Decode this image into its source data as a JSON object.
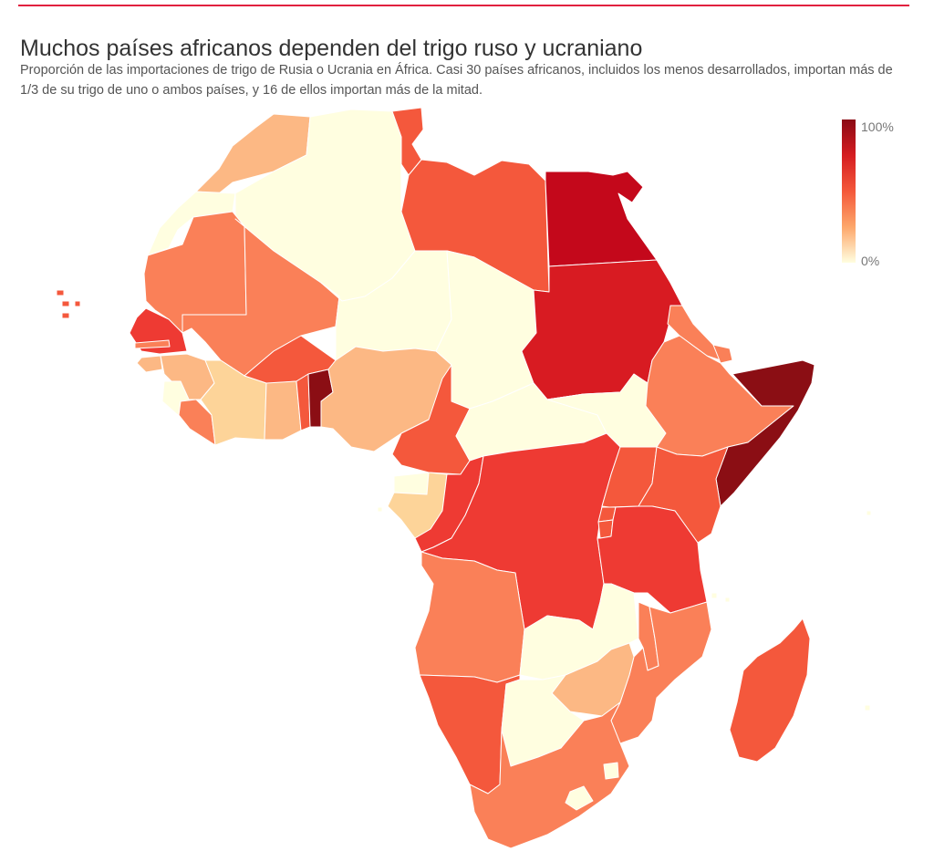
{
  "header": {
    "title": "Muchos países africanos dependen del trigo ruso y ucraniano",
    "subtitle": "Proporción de las importaciones de trigo de Rusia o Ucrania en África. Casi 30 países africanos, incluidos los menos desarrollados, importan más de 1/3 de su trigo de uno o ambos países, y 16 de ellos importan más de la mitad."
  },
  "legend": {
    "max_label": "100%",
    "min_label": "0%",
    "color_max": "#8b0a15",
    "color_min": "#fffee0"
  },
  "map": {
    "colors": {
      "very_high": "#8b0e14",
      "high": "#c4081b",
      "red": "#d81b22",
      "red_orange": "#ee3a33",
      "orange_red": "#f4583c",
      "orange": "#fa8058",
      "light_orange": "#fcb884",
      "pale": "#fdd499",
      "none": "#fffee0",
      "border": "#ffffff"
    },
    "countries": [
      {
        "name": "Morocco",
        "color": "light_orange"
      },
      {
        "name": "Western Sahara",
        "color": "none"
      },
      {
        "name": "Algeria",
        "color": "none"
      },
      {
        "name": "Tunisia",
        "color": "orange_red"
      },
      {
        "name": "Libya",
        "color": "orange_red"
      },
      {
        "name": "Egypt",
        "color": "high"
      },
      {
        "name": "Mauritania",
        "color": "orange"
      },
      {
        "name": "Mali",
        "color": "orange"
      },
      {
        "name": "Niger",
        "color": "none"
      },
      {
        "name": "Chad",
        "color": "none"
      },
      {
        "name": "Sudan",
        "color": "red"
      },
      {
        "name": "Senegal",
        "color": "red_orange"
      },
      {
        "name": "Gambia",
        "color": "orange"
      },
      {
        "name": "Guinea-Bissau",
        "color": "light_orange"
      },
      {
        "name": "Guinea",
        "color": "light_orange"
      },
      {
        "name": "Sierra Leone",
        "color": "none"
      },
      {
        "name": "Liberia",
        "color": "orange"
      },
      {
        "name": "Ivory Coast",
        "color": "pale"
      },
      {
        "name": "Burkina Faso",
        "color": "orange_red"
      },
      {
        "name": "Ghana",
        "color": "light_orange"
      },
      {
        "name": "Togo",
        "color": "orange_red"
      },
      {
        "name": "Benin",
        "color": "very_high"
      },
      {
        "name": "Nigeria",
        "color": "light_orange"
      },
      {
        "name": "Cameroon",
        "color": "orange_red"
      },
      {
        "name": "Central African Republic",
        "color": "none"
      },
      {
        "name": "South Sudan",
        "color": "none"
      },
      {
        "name": "Eritrea",
        "color": "orange"
      },
      {
        "name": "Djibouti",
        "color": "orange"
      },
      {
        "name": "Ethiopia",
        "color": "orange"
      },
      {
        "name": "Somalia",
        "color": "very_high"
      },
      {
        "name": "Equatorial Guinea",
        "color": "none"
      },
      {
        "name": "Gabon",
        "color": "pale"
      },
      {
        "name": "Republic of the Congo",
        "color": "red_orange"
      },
      {
        "name": "DR Congo",
        "color": "red_orange"
      },
      {
        "name": "Uganda",
        "color": "orange_red"
      },
      {
        "name": "Kenya",
        "color": "orange_red"
      },
      {
        "name": "Rwanda",
        "color": "orange_red"
      },
      {
        "name": "Burundi",
        "color": "orange_red"
      },
      {
        "name": "Tanzania",
        "color": "red_orange"
      },
      {
        "name": "Angola",
        "color": "orange"
      },
      {
        "name": "Zambia",
        "color": "none"
      },
      {
        "name": "Malawi",
        "color": "orange"
      },
      {
        "name": "Mozambique",
        "color": "orange"
      },
      {
        "name": "Zimbabwe",
        "color": "light_orange"
      },
      {
        "name": "Namibia",
        "color": "orange_red"
      },
      {
        "name": "Botswana",
        "color": "none"
      },
      {
        "name": "South Africa",
        "color": "orange"
      },
      {
        "name": "Lesotho",
        "color": "none"
      },
      {
        "name": "Eswatini",
        "color": "none"
      },
      {
        "name": "Madagascar",
        "color": "orange_red"
      },
      {
        "name": "Cape Verde",
        "color": "orange_red"
      },
      {
        "name": "Comoros",
        "color": "none"
      },
      {
        "name": "Mauritius",
        "color": "none"
      },
      {
        "name": "Seychelles",
        "color": "none"
      },
      {
        "name": "Sao Tome and Principe",
        "color": "none"
      }
    ]
  }
}
